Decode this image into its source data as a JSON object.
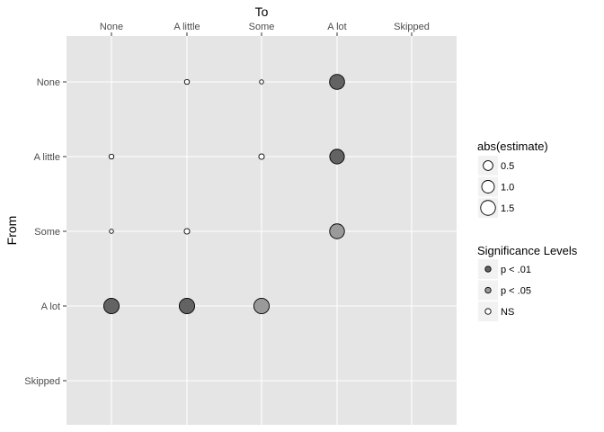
{
  "chart_data": {
    "type": "scatter",
    "title": "",
    "xlabel": "To",
    "ylabel": "From",
    "x_axis_position": "top",
    "categories_x": [
      "None",
      "A little",
      "Some",
      "A lot",
      "Skipped"
    ],
    "categories_y": [
      "None",
      "A little",
      "Some",
      "A lot",
      "Skipped"
    ],
    "grid": true,
    "legend_position": "right",
    "size_legend": {
      "title": "abs(estimate)",
      "entries": [
        {
          "label": "0.5",
          "value": 0.5
        },
        {
          "label": "1.0",
          "value": 1.0
        },
        {
          "label": "1.5",
          "value": 1.5
        }
      ]
    },
    "fill_legend": {
      "title": "Significance Levels",
      "entries": [
        {
          "label": "p < .01",
          "color": "#636363"
        },
        {
          "label": "p < .05",
          "color": "#9a9a9a"
        },
        {
          "label": "NS",
          "color": "#ffffff"
        }
      ]
    },
    "points": [
      {
        "from": "None",
        "to": "A little",
        "abs_estimate": 0.05,
        "significance": "NS"
      },
      {
        "from": "None",
        "to": "Some",
        "abs_estimate": 0.02,
        "significance": "NS"
      },
      {
        "from": "None",
        "to": "A lot",
        "abs_estimate": 1.55,
        "significance": "p < .01"
      },
      {
        "from": "A little",
        "to": "None",
        "abs_estimate": 0.05,
        "significance": "NS"
      },
      {
        "from": "A little",
        "to": "Some",
        "abs_estimate": 0.08,
        "significance": "NS"
      },
      {
        "from": "A little",
        "to": "A lot",
        "abs_estimate": 1.45,
        "significance": "p < .01"
      },
      {
        "from": "Some",
        "to": "None",
        "abs_estimate": 0.02,
        "significance": "NS"
      },
      {
        "from": "Some",
        "to": "A little",
        "abs_estimate": 0.08,
        "significance": "NS"
      },
      {
        "from": "Some",
        "to": "A lot",
        "abs_estimate": 1.5,
        "significance": "p < .05"
      },
      {
        "from": "A lot",
        "to": "None",
        "abs_estimate": 1.65,
        "significance": "p < .01"
      },
      {
        "from": "A lot",
        "to": "A little",
        "abs_estimate": 1.65,
        "significance": "p < .01"
      },
      {
        "from": "A lot",
        "to": "Some",
        "abs_estimate": 1.65,
        "significance": "p < .05"
      }
    ]
  }
}
